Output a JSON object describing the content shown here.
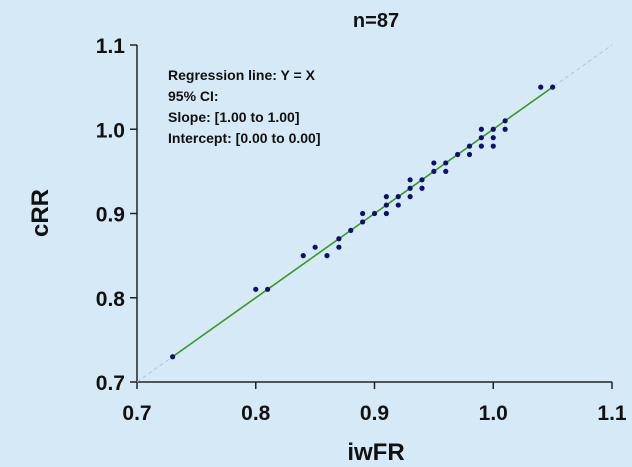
{
  "chart_data": {
    "type": "scatter",
    "title": "n=87",
    "xlabel": "iwFR",
    "ylabel": "cRR",
    "xlim": [
      0.7,
      1.1
    ],
    "ylim": [
      0.7,
      1.1
    ],
    "xticks": [
      "0.7",
      "0.8",
      "0.9",
      "1.0",
      "1.1"
    ],
    "yticks": [
      "0.7",
      "0.8",
      "0.9",
      "1.0",
      "1.1"
    ],
    "grid": false,
    "annotations": [
      "Regression line: Y = X",
      "95% CI:",
      "Slope: [1.00 to 1.00]",
      "Intercept: [0.00 to 0.00]"
    ],
    "regression": {
      "slope": 1.0,
      "intercept": 0.0,
      "x_range": [
        0.73,
        1.05
      ],
      "color": "#3a9a1e"
    },
    "identity_line": {
      "color": "#b8c4cc",
      "style": "dashed"
    },
    "point_color": "#0d1070",
    "points": [
      {
        "x": 0.73,
        "y": 0.73
      },
      {
        "x": 0.8,
        "y": 0.81
      },
      {
        "x": 0.81,
        "y": 0.81
      },
      {
        "x": 0.84,
        "y": 0.85
      },
      {
        "x": 0.85,
        "y": 0.86
      },
      {
        "x": 0.86,
        "y": 0.85
      },
      {
        "x": 0.87,
        "y": 0.86
      },
      {
        "x": 0.87,
        "y": 0.87
      },
      {
        "x": 0.88,
        "y": 0.88
      },
      {
        "x": 0.89,
        "y": 0.89
      },
      {
        "x": 0.89,
        "y": 0.9
      },
      {
        "x": 0.9,
        "y": 0.9
      },
      {
        "x": 0.91,
        "y": 0.9
      },
      {
        "x": 0.91,
        "y": 0.91
      },
      {
        "x": 0.91,
        "y": 0.92
      },
      {
        "x": 0.92,
        "y": 0.91
      },
      {
        "x": 0.92,
        "y": 0.92
      },
      {
        "x": 0.93,
        "y": 0.92
      },
      {
        "x": 0.93,
        "y": 0.93
      },
      {
        "x": 0.93,
        "y": 0.94
      },
      {
        "x": 0.94,
        "y": 0.93
      },
      {
        "x": 0.94,
        "y": 0.94
      },
      {
        "x": 0.95,
        "y": 0.95
      },
      {
        "x": 0.95,
        "y": 0.96
      },
      {
        "x": 0.96,
        "y": 0.95
      },
      {
        "x": 0.96,
        "y": 0.96
      },
      {
        "x": 0.97,
        "y": 0.97
      },
      {
        "x": 0.98,
        "y": 0.97
      },
      {
        "x": 0.98,
        "y": 0.98
      },
      {
        "x": 0.99,
        "y": 0.98
      },
      {
        "x": 0.99,
        "y": 0.99
      },
      {
        "x": 0.99,
        "y": 1.0
      },
      {
        "x": 1.0,
        "y": 0.98
      },
      {
        "x": 1.0,
        "y": 0.99
      },
      {
        "x": 1.0,
        "y": 1.0
      },
      {
        "x": 1.01,
        "y": 1.0
      },
      {
        "x": 1.01,
        "y": 1.01
      },
      {
        "x": 1.04,
        "y": 1.05
      },
      {
        "x": 1.05,
        "y": 1.05
      }
    ]
  }
}
